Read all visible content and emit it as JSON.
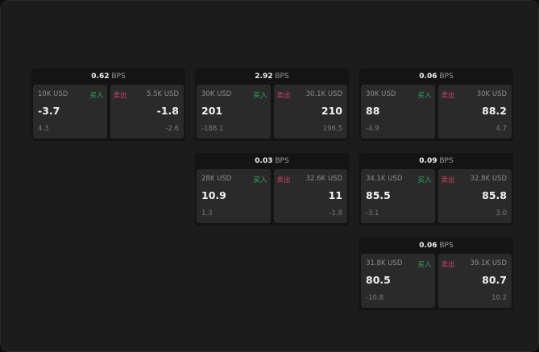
{
  "unit": "BPS",
  "buy_label": "买入",
  "sell_label": "卖出",
  "colors": {
    "buy": "#2fa865",
    "sell": "#d0436a"
  },
  "cards": [
    {
      "bps": "0.62",
      "buy": {
        "qty": "10K USD",
        "price": "-3.7",
        "change": "4.3"
      },
      "sell": {
        "qty": "5.5K USD",
        "price": "-1.8",
        "change": "-2.6"
      }
    },
    {
      "bps": "2.92",
      "buy": {
        "qty": "30K USD",
        "price": "201",
        "change": "-188.1"
      },
      "sell": {
        "qty": "30.1K USD",
        "price": "210",
        "change": "196.5"
      }
    },
    {
      "bps": "0.06",
      "buy": {
        "qty": "30K USD",
        "price": "88",
        "change": "-4.9"
      },
      "sell": {
        "qty": "30K USD",
        "price": "88.2",
        "change": "4.7"
      }
    },
    {
      "bps": "0.03",
      "buy": {
        "qty": "28K USD",
        "price": "10.9",
        "change": "1.3"
      },
      "sell": {
        "qty": "32.6K USD",
        "price": "11",
        "change": "-1.8"
      }
    },
    {
      "bps": "0.09",
      "buy": {
        "qty": "34.1K USD",
        "price": "85.5",
        "change": "-3.1"
      },
      "sell": {
        "qty": "32.8K USD",
        "price": "85.8",
        "change": "3.0"
      }
    },
    {
      "bps": "0.06",
      "buy": {
        "qty": "31.8K USD",
        "price": "80.5",
        "change": "-10.8"
      },
      "sell": {
        "qty": "39.1K USD",
        "price": "80.7",
        "change": "10.2"
      }
    }
  ]
}
